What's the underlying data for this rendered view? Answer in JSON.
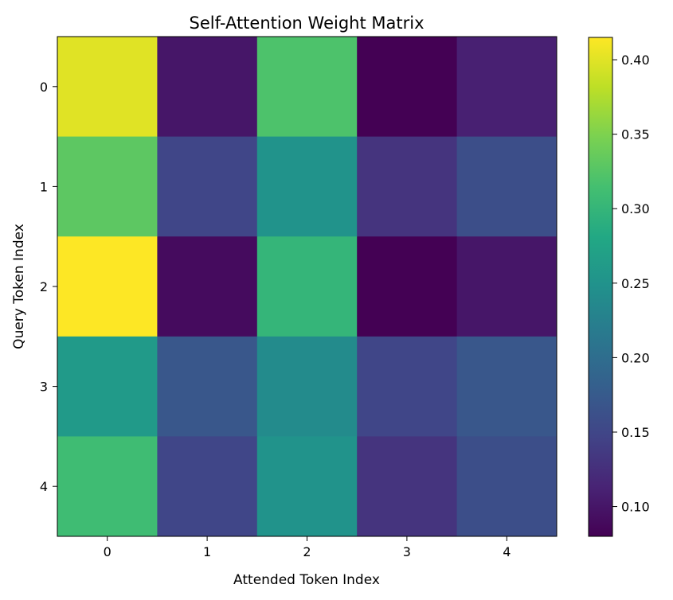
{
  "chart_data": {
    "type": "heatmap",
    "title": "Self-Attention Weight Matrix",
    "xlabel": "Attended Token Index",
    "ylabel": "Query Token Index",
    "x_ticks": [
      "0",
      "1",
      "2",
      "3",
      "4"
    ],
    "y_ticks": [
      "0",
      "1",
      "2",
      "3",
      "4"
    ],
    "values": [
      [
        0.4,
        0.1,
        0.32,
        0.08,
        0.11
      ],
      [
        0.33,
        0.15,
        0.25,
        0.13,
        0.16
      ],
      [
        0.415,
        0.09,
        0.3,
        0.08,
        0.1
      ],
      [
        0.26,
        0.17,
        0.24,
        0.15,
        0.17
      ],
      [
        0.31,
        0.15,
        0.25,
        0.13,
        0.16
      ]
    ],
    "colormap": "viridis",
    "color_range": [
      0.08,
      0.415
    ],
    "colorbar_ticks": [
      "0.10",
      "0.15",
      "0.20",
      "0.25",
      "0.30",
      "0.35",
      "0.40"
    ],
    "grid": false
  }
}
